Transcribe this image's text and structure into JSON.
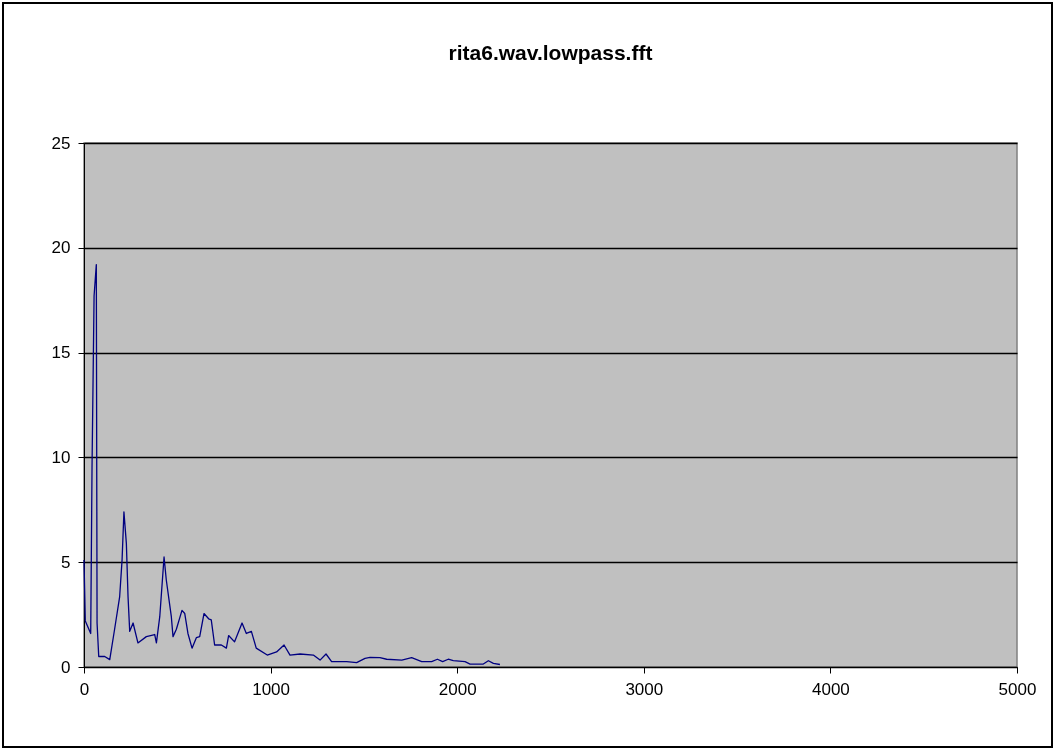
{
  "chart_data": {
    "type": "line",
    "title": "rita6.wav.lowpass.fft",
    "x": [
      0,
      7,
      36,
      43,
      54,
      66,
      70,
      79,
      111,
      138,
      164,
      191,
      204,
      214,
      227,
      236,
      245,
      263,
      289,
      334,
      379,
      388,
      406,
      429,
      441,
      468,
      477,
      495,
      525,
      540,
      557,
      579,
      602,
      620,
      643,
      668,
      682,
      700,
      736,
      763,
      775,
      807,
      847,
      870,
      897,
      923,
      982,
      1032,
      1072,
      1104,
      1158,
      1229,
      1265,
      1297,
      1327,
      1408,
      1461,
      1506,
      1533,
      1586,
      1622,
      1703,
      1756,
      1810,
      1863,
      1894,
      1922,
      1952,
      1979,
      2042,
      2069,
      2140,
      2167,
      2194,
      2229
    ],
    "series": [
      {
        "color": "#000080",
        "values": [
          5.1,
          2.2,
          1.6,
          9.5,
          17.7,
          19.2,
          2.1,
          0.5,
          0.5,
          0.35,
          1.8,
          3.35,
          5.1,
          7.4,
          5.9,
          3.35,
          1.7,
          2.1,
          1.15,
          1.45,
          1.55,
          1.15,
          2.4,
          5.25,
          4.15,
          2.4,
          1.45,
          1.8,
          2.7,
          2.55,
          1.6,
          0.9,
          1.4,
          1.45,
          2.55,
          2.3,
          2.25,
          1.05,
          1.05,
          0.9,
          1.5,
          1.2,
          2.1,
          1.6,
          1.7,
          0.9,
          0.57,
          0.72,
          1.05,
          0.57,
          0.62,
          0.57,
          0.33,
          0.62,
          0.26,
          0.26,
          0.21,
          0.41,
          0.46,
          0.45,
          0.37,
          0.33,
          0.45,
          0.26,
          0.26,
          0.37,
          0.26,
          0.37,
          0.3,
          0.26,
          0.14,
          0.14,
          0.3,
          0.17,
          0.12
        ]
      }
    ],
    "xlim": [
      0,
      5000
    ],
    "xticks": [
      0,
      1000,
      2000,
      3000,
      4000,
      5000
    ],
    "ylim": [
      0,
      25
    ],
    "yticks": [
      0,
      5,
      10,
      15,
      20,
      25
    ],
    "grid": "y",
    "line_style": "solid",
    "marker": "none"
  }
}
